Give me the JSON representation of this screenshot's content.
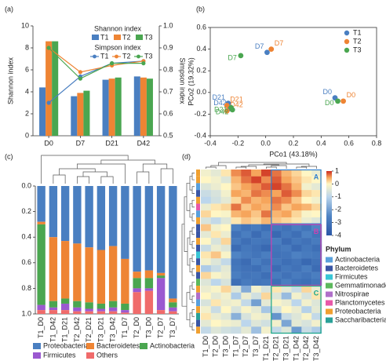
{
  "chart_data": [
    {
      "type": "bar",
      "panel": "(a)",
      "categories": [
        "D0",
        "D7",
        "D21",
        "D42"
      ],
      "ylabel": "Shannon index",
      "y2label": "Simpson index",
      "ylim": [
        0,
        10
      ],
      "yticks": [
        0,
        2,
        4,
        6,
        8,
        10
      ],
      "y2lim": [
        0.5,
        1
      ],
      "y2ticks": [
        0.5,
        0.6,
        0.7,
        0.8,
        0.9,
        {
          "value": 1,
          "label": "1.0"
        }
      ],
      "legend_titles": [
        "Shannon index",
        "Simpson index"
      ],
      "series": [
        {
          "name": "T1",
          "type": "bar",
          "color": "#4a7fc1",
          "values": [
            4.4,
            3.6,
            5.1,
            5.4
          ]
        },
        {
          "name": "T2",
          "type": "bar",
          "color": "#ee8434",
          "values": [
            8.6,
            3.9,
            5.2,
            5.3
          ]
        },
        {
          "name": "T3",
          "type": "bar",
          "color": "#4aa650",
          "values": [
            8.6,
            4.1,
            5.3,
            5.2
          ]
        },
        {
          "name": "T1",
          "type": "line",
          "axis": "y2",
          "color": "#4a7fc1",
          "values": [
            0.65,
            0.77,
            0.83,
            0.84
          ]
        },
        {
          "name": "T2",
          "type": "line",
          "axis": "y2",
          "color": "#ee8434",
          "values": [
            0.9,
            0.79,
            0.82,
            0.84
          ]
        },
        {
          "name": "T3",
          "type": "line",
          "axis": "y2",
          "color": "#4aa650",
          "values": [
            0.9,
            0.76,
            0.83,
            0.83
          ]
        }
      ]
    },
    {
      "type": "scatter",
      "panel": "(b)",
      "xlabel": "PCo1 (43.18%)",
      "ylabel": "PCo2 (19.32%)",
      "xlim": [
        -0.4,
        0.8
      ],
      "xticks": [
        -0.4,
        -0.2,
        {
          "value": 0,
          "label": "0.0"
        },
        0.2,
        0.4,
        0.6,
        0.8
      ],
      "ylim": [
        -0.4,
        0.6
      ],
      "yticks": [
        -0.4,
        -0.2,
        {
          "value": 0,
          "label": "0.0"
        },
        0.2,
        0.4,
        0.6
      ],
      "series": [
        {
          "name": "T1",
          "color": "#4a7fc1",
          "x": [
            0.5,
            0.01,
            -0.27,
            -0.26
          ],
          "values": [
            -0.05,
            0.37,
            -0.1,
            -0.15
          ],
          "labels": [
            "D0",
            "D7",
            "D21",
            "D42"
          ]
        },
        {
          "name": "T2",
          "color": "#ee8434",
          "x": [
            0.56,
            0.04,
            -0.28,
            -0.28
          ],
          "values": [
            -0.08,
            0.4,
            -0.12,
            -0.17
          ],
          "labels": [
            "D0",
            "D7",
            "D21",
            "D42"
          ]
        },
        {
          "name": "T3",
          "color": "#4aa650",
          "x": [
            0.52,
            -0.18,
            -0.25,
            -0.24
          ],
          "values": [
            -0.08,
            0.34,
            -0.14,
            -0.16
          ],
          "labels": [
            "D0",
            "D7",
            "D21",
            "D42"
          ]
        }
      ]
    },
    {
      "type": "stacked_bar",
      "panel": "(c)",
      "y_inverted": true,
      "categories": [
        "T1_D0",
        "T1_D42",
        "T1_D21",
        "T2_D42",
        "T2_D21",
        "T3_D21",
        "T3_D42",
        "T1_D7",
        "T2_D0",
        "T3_D0",
        "T2_D7",
        "T3_D7"
      ],
      "ylim": [
        0,
        1
      ],
      "yticks": [
        {
          "value": 0,
          "label": "0.0"
        },
        0.2,
        0.4,
        0.6,
        0.8,
        {
          "value": 1,
          "label": "1.0"
        }
      ],
      "series": [
        {
          "name": "Proteobacteria",
          "color": "#4a7fc1",
          "values": [
            0.28,
            0.4,
            0.43,
            0.45,
            0.48,
            0.5,
            0.47,
            0.57,
            0.67,
            0.66,
            0.68,
            0.88
          ]
        },
        {
          "name": "Bacteroidetes",
          "color": "#ee8434",
          "values": [
            0.02,
            0.5,
            0.45,
            0.45,
            0.43,
            0.42,
            0.43,
            0.35,
            0.05,
            0.06,
            0.02,
            0.03
          ]
        },
        {
          "name": "Actinobacteria",
          "color": "#4aa650",
          "values": [
            0.63,
            0.05,
            0.04,
            0.05,
            0.05,
            0.04,
            0.05,
            0.05,
            0.08,
            0.08,
            0.02,
            0.04
          ]
        },
        {
          "name": "Firmicutes",
          "color": "#9b59d0",
          "values": [
            0.04,
            0.02,
            0.05,
            0.03,
            0.02,
            0.02,
            0.03,
            0.02,
            0.03,
            0.02,
            0.25,
            0.03
          ]
        },
        {
          "name": "Others",
          "color": "#f06b6b",
          "values": [
            0.03,
            0.03,
            0.03,
            0.02,
            0.02,
            0.02,
            0.02,
            0.01,
            0.17,
            0.18,
            0.03,
            0.02
          ]
        }
      ]
    },
    {
      "type": "heatmap",
      "panel": "(d)",
      "columns": [
        "T1_D0",
        "T2_D0",
        "T3_D0",
        "T1_D7",
        "T2_D7",
        "T3_D7",
        "T1_D21",
        "T2_D21",
        "T3_D21",
        "T1_D42",
        "T2_D42",
        "T3_D42"
      ],
      "clim": [
        -4,
        1
      ],
      "cticks": [
        1,
        0,
        -1,
        -2,
        -3,
        -4
      ],
      "row_group": [
        "A",
        "A",
        "A",
        "A",
        "A",
        "A",
        "A",
        "A",
        "B",
        "B",
        "B",
        "B",
        "B",
        "B",
        "B",
        "B",
        "B",
        "C",
        "C",
        "C",
        "C",
        "C",
        "C",
        "C"
      ],
      "row_phylum": [
        "Proteobacteria",
        "Proteobacteria",
        "Actinobacteria",
        "Bacteroidetes",
        "Proteobacteria",
        "Planctomycetes",
        "Actinobacteria",
        "Proteobacteria",
        "Bacteroidetes",
        "Bacteroidetes",
        "Proteobacteria",
        "Bacteroidetes",
        "Firmicutes",
        "Bacteroidetes",
        "Proteobacteria",
        "Bacteroidetes",
        "Gemmatimonadetes",
        "Proteobacteria",
        "Nitrospirae",
        "Actinobacteria",
        "Proteobacteria",
        "Saccharibacteria",
        "Bacteroidetes",
        "Proteobacteria"
      ],
      "legend_title": "Phylum",
      "phyla": [
        {
          "name": "Actinobacteria",
          "color": "#5aa0dc"
        },
        {
          "name": "Bacteroidetes",
          "color": "#3a56a5"
        },
        {
          "name": "Firmicutes",
          "color": "#39c6d6"
        },
        {
          "name": "Gemmatimonadetes",
          "color": "#5cb85c"
        },
        {
          "name": "Nitrospirae",
          "color": "#b06fc9"
        },
        {
          "name": "Planctomycetes",
          "color": "#e858a8"
        },
        {
          "name": "Proteobacteria",
          "color": "#f0a030"
        },
        {
          "name": "Saccharibacteria",
          "color": "#2aa198"
        }
      ],
      "values": [
        [
          -0.2,
          -0.4,
          0.1,
          0.6,
          0.8,
          0.5,
          0.9,
          0.7,
          0.4,
          0.2,
          0.0,
          -0.3
        ],
        [
          0.0,
          -0.2,
          -0.5,
          0.4,
          0.7,
          0.9,
          0.6,
          0.8,
          0.5,
          0.3,
          0.1,
          0.0
        ],
        [
          -0.5,
          -0.3,
          0.0,
          0.3,
          0.5,
          0.6,
          0.8,
          0.9,
          0.7,
          0.4,
          -0.2,
          -0.4
        ],
        [
          -0.8,
          -0.6,
          -0.2,
          0.5,
          0.4,
          0.7,
          0.6,
          0.5,
          0.8,
          0.6,
          0.2,
          0.1
        ],
        [
          -1.0,
          -0.7,
          -0.4,
          0.2,
          0.6,
          0.4,
          0.5,
          0.7,
          0.6,
          0.3,
          0.0,
          -0.2
        ],
        [
          -0.3,
          0.1,
          0.2,
          0.7,
          0.3,
          0.5,
          0.4,
          0.6,
          0.3,
          0.5,
          0.4,
          0.2
        ],
        [
          0.2,
          0.0,
          -0.1,
          0.4,
          0.5,
          0.3,
          0.7,
          0.4,
          0.5,
          0.2,
          -0.1,
          0.0
        ],
        [
          -0.6,
          -0.9,
          -0.5,
          0.1,
          0.3,
          0.2,
          0.4,
          0.3,
          0.2,
          0.1,
          -0.3,
          -0.5
        ],
        [
          0.3,
          -0.2,
          0.0,
          -2.6,
          -3.0,
          -2.8,
          -3.2,
          -2.9,
          -3.1,
          -2.7,
          -3.0,
          -2.5
        ],
        [
          -0.4,
          0.1,
          -0.3,
          -3.1,
          -2.7,
          -3.3,
          -2.8,
          -3.4,
          -2.9,
          -3.2,
          -2.6,
          -3.0
        ],
        [
          0.0,
          -0.6,
          0.2,
          -2.8,
          -3.2,
          -2.9,
          -3.0,
          -2.7,
          -3.3,
          -2.9,
          -3.1,
          -2.8
        ],
        [
          -0.8,
          -0.3,
          -0.5,
          -3.3,
          -2.9,
          -3.1,
          -3.4,
          -3.0,
          -2.8,
          -3.3,
          -2.9,
          -3.2
        ],
        [
          0.1,
          0.3,
          -0.1,
          -2.5,
          -2.8,
          -3.0,
          -2.7,
          -3.1,
          -3.0,
          -2.6,
          -2.8,
          -2.9
        ],
        [
          -0.2,
          -0.5,
          -0.9,
          -3.0,
          -3.3,
          -2.7,
          -3.1,
          -2.9,
          -3.2,
          -3.0,
          -3.4,
          -3.1
        ],
        [
          -1.2,
          -0.8,
          -0.4,
          -2.9,
          -3.1,
          -3.2,
          -2.8,
          -3.3,
          -2.9,
          -3.1,
          -2.7,
          -3.3
        ],
        [
          0.2,
          -0.1,
          -0.3,
          -2.7,
          -3.0,
          -2.9,
          -3.2,
          -2.8,
          -3.1,
          -2.8,
          -3.0,
          -2.7
        ],
        [
          -0.5,
          -1.0,
          -0.6,
          -3.2,
          -2.8,
          -3.0,
          -2.9,
          -3.2,
          -2.7,
          -3.1,
          -3.2,
          -3.0
        ],
        [
          -0.3,
          -0.1,
          0.2,
          -0.5,
          -1.8,
          -0.2,
          -0.6,
          0.1,
          -0.4,
          -0.8,
          0.2,
          -0.3
        ],
        [
          0.0,
          -0.4,
          -0.2,
          -1.2,
          -0.3,
          -0.7,
          0.2,
          -0.5,
          -1.5,
          -0.2,
          -0.6,
          0.1
        ],
        [
          -0.6,
          0.1,
          -0.3,
          -0.2,
          -0.9,
          -2.0,
          -0.4,
          -0.1,
          -0.3,
          -1.0,
          -0.2,
          -0.5
        ],
        [
          -0.2,
          -0.8,
          0.0,
          -0.6,
          -0.1,
          -0.4,
          -1.3,
          -0.7,
          0.0,
          -0.3,
          -1.1,
          -0.4
        ],
        [
          0.1,
          -0.3,
          -0.5,
          -1.7,
          -0.6,
          -0.2,
          -0.3,
          -2.2,
          -0.8,
          -0.5,
          -0.1,
          -0.9
        ],
        [
          -0.4,
          0.0,
          -0.2,
          -0.3,
          -1.0,
          -0.5,
          -0.7,
          -0.2,
          -1.9,
          -0.4,
          -0.6,
          -0.2
        ],
        [
          -0.9,
          -0.5,
          -0.7,
          -0.8,
          -0.4,
          -1.4,
          -0.2,
          -0.9,
          -0.5,
          -2.1,
          -0.8,
          -1.2
        ]
      ]
    }
  ]
}
